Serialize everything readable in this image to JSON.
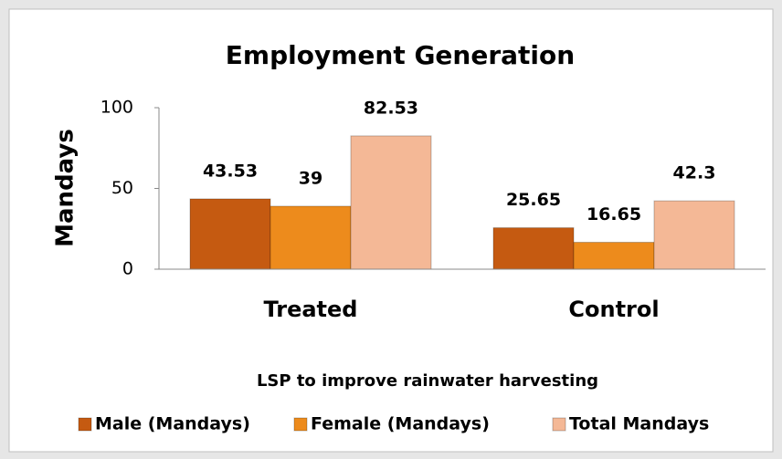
{
  "chart_data": {
    "type": "bar",
    "title": "Employment Generation",
    "categories": [
      "Treated",
      "Control"
    ],
    "series": [
      {
        "name": "Male (Mandays)",
        "color": "#c55a11",
        "values": [
          43.53,
          25.65
        ]
      },
      {
        "name": "Female (Mandays)",
        "color": "#ed8b1c",
        "values": [
          39,
          16.65
        ]
      },
      {
        "name": "Total Mandays",
        "color": "#f4b896",
        "values": [
          82.53,
          42.3
        ]
      }
    ],
    "ylabel": "Mandays",
    "xlabel": "LSP to improve rainwater harvesting",
    "ylim": [
      0,
      100
    ],
    "yticks": [
      0,
      50,
      100
    ],
    "grid": false,
    "legend": "bottom"
  }
}
